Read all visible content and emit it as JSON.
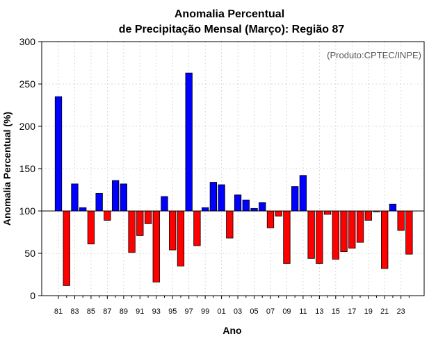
{
  "chart_data": {
    "type": "bar",
    "title": [
      "Anomalia Percentual",
      "de Precipitação Mensal (Março): Região 87"
    ],
    "credit": "(Produto:CPTEC/INPE)",
    "xlabel": "Ano",
    "ylabel": "Anomalia Percentual (%)",
    "ylim": [
      0,
      300
    ],
    "yticks": [
      "0",
      "50",
      "100",
      "150",
      "200",
      "250",
      "300"
    ],
    "baseline": 100,
    "grid": true,
    "colors": {
      "above": "#0000ff",
      "below": "#ff0000",
      "edge": "#000000"
    },
    "categories": [
      "81",
      "82",
      "83",
      "84",
      "85",
      "86",
      "87",
      "88",
      "89",
      "90",
      "91",
      "92",
      "93",
      "94",
      "95",
      "96",
      "97",
      "98",
      "99",
      "00",
      "01",
      "02",
      "03",
      "04",
      "05",
      "06",
      "07",
      "08",
      "09",
      "10",
      "11",
      "12",
      "13",
      "14",
      "15",
      "16",
      "17",
      "18",
      "19",
      "20",
      "21",
      "22",
      "23",
      "24"
    ],
    "xtick_labels": [
      "81",
      "83",
      "85",
      "87",
      "89",
      "91",
      "93",
      "95",
      "97",
      "99",
      "01",
      "03",
      "05",
      "07",
      "09",
      "11",
      "13",
      "15",
      "17",
      "19",
      "21",
      "23"
    ],
    "values": [
      235,
      12,
      132,
      104,
      61,
      121,
      89,
      136,
      132,
      51,
      71,
      85,
      16,
      117,
      54,
      35,
      263,
      59,
      104,
      134,
      131,
      68,
      119,
      113,
      103,
      110,
      80,
      94,
      38,
      129,
      142,
      44,
      38,
      96,
      43,
      52,
      56,
      63,
      89,
      99,
      32,
      108,
      77,
      49
    ]
  }
}
